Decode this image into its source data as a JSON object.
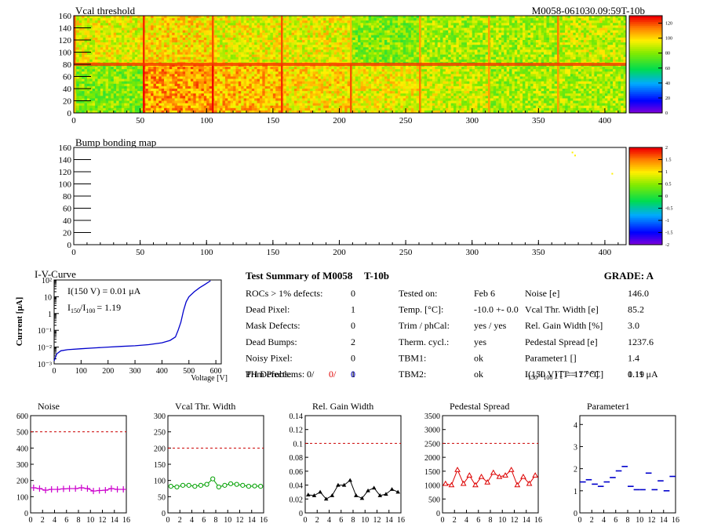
{
  "vcal_map": {
    "title": "Vcal threshold",
    "module_id": "M0058-061030.09:59T-10b",
    "x_ticks": [
      "0",
      "50",
      "100",
      "150",
      "200",
      "250",
      "300",
      "350",
      "400"
    ],
    "y_ticks": [
      "0",
      "20",
      "40",
      "60",
      "80",
      "100",
      "120",
      "140",
      "160"
    ],
    "palette_ticks": [
      "0",
      "20",
      "40",
      "60",
      "80",
      "100",
      "120"
    ],
    "xlim": [
      0,
      416
    ],
    "ylim": [
      0,
      160
    ],
    "zlim": [
      0,
      130
    ]
  },
  "bump_map": {
    "title": "Bump bonding map",
    "x_ticks": [
      "0",
      "50",
      "100",
      "150",
      "200",
      "250",
      "300",
      "350",
      "400"
    ],
    "y_ticks": [
      "0",
      "20",
      "40",
      "60",
      "80",
      "100",
      "120",
      "140",
      "160"
    ],
    "palette_ticks": [
      "-2",
      "-1.5",
      "-1",
      "-0.5",
      "0",
      "0.5",
      "1",
      "1.5",
      "2"
    ],
    "xlim": [
      0,
      416
    ],
    "ylim": [
      0,
      160
    ],
    "zlim": [
      -2,
      2
    ]
  },
  "iv": {
    "title": "I-V-Curve",
    "ylabel": "Current [μA]",
    "xlabel": "Voltage [V]",
    "x_ticks": [
      "0",
      "100",
      "200",
      "300",
      "400",
      "500",
      "600"
    ],
    "y_ticks": [
      "10⁻³",
      "10⁻²",
      "10⁻¹",
      "1",
      "10",
      "10²"
    ],
    "annotation_current": "I(150 V) = 0.01 μA",
    "annotation_ratio_label": "I",
    "annotation_ratio_sub1": "150",
    "annotation_ratio_slash": "/I",
    "annotation_ratio_sub2": "100",
    "annotation_ratio_value": "=  1.19",
    "color": "#0000cc"
  },
  "summary": {
    "title": "Test Summary of M0058",
    "subtitle": "T-10b",
    "grade": "GRADE:  A",
    "left": [
      {
        "label": "ROCs > 1% defects:",
        "value": "0"
      },
      {
        "label": "Dead Pixel:",
        "value": "1"
      },
      {
        "label": "Mask Defects:",
        "value": "0"
      },
      {
        "label": "Dead Bumps:",
        "value": "2"
      },
      {
        "label": "Noisy Pixel:",
        "value": "0"
      },
      {
        "label": "Trim Problems:",
        "value": "1"
      }
    ],
    "ph_label": "PH Defects:",
    "ph_values": [
      {
        "value": "0/",
        "color": "#000000"
      },
      {
        "value": "0/",
        "color": "#e00000"
      },
      {
        "value": "0",
        "color": "#0000cc"
      }
    ],
    "middle": [
      {
        "label": "Tested on:",
        "value": "Feb 6"
      },
      {
        "label": "Temp. [°C]:",
        "value": "-10.0 +- 0.0"
      },
      {
        "label": "Trim / phCal:",
        "value": "yes / yes"
      },
      {
        "label": "Therm. cycl.:",
        "value": "yes"
      },
      {
        "label": "TBM1:",
        "value": "ok"
      },
      {
        "label": "TBM2:",
        "value": "ok"
      }
    ],
    "right": [
      {
        "label": "Noise [e]",
        "value": "146.0"
      },
      {
        "label": "Vcal Thr. Width [e]",
        "value": "85.2"
      },
      {
        "label": "Rel. Gain Width [%]",
        "value": "3.0"
      },
      {
        "label": "Pedestal Spread [e]",
        "value": "1237.6"
      },
      {
        "label": "Parameter1 []",
        "value": "1.4"
      },
      {
        "label": "I(150 V) [T = 17 °C]",
        "value": "0.11 μA"
      }
    ],
    "ratio_row": {
      "label_main": "I",
      "sub1": "150",
      "slash": "/I",
      "sub2": "100",
      "tail": " [T = 17 °C]",
      "value": "1.19"
    }
  },
  "chart_data": [
    {
      "type": "heatmap",
      "title": "Vcal threshold",
      "x_range": [
        0,
        416
      ],
      "y_range": [
        0,
        160
      ],
      "z_range": [
        0,
        130
      ],
      "roc_grid": {
        "columns": 8,
        "rows": 2
      },
      "roc_mean_values_top_row": [
        95,
        100,
        95,
        95,
        80,
        85,
        85,
        90
      ],
      "roc_mean_values_bottom_row": [
        80,
        110,
        105,
        100,
        95,
        90,
        85,
        85
      ]
    },
    {
      "type": "heatmap",
      "title": "Bump bonding map",
      "x_range": [
        0,
        416
      ],
      "y_range": [
        0,
        160
      ],
      "z_range": [
        -2,
        2
      ],
      "points": [
        {
          "x": 375,
          "y": 153,
          "z": 1
        },
        {
          "x": 377,
          "y": 148,
          "z": 1
        },
        {
          "x": 405,
          "y": 118,
          "z": 1
        }
      ]
    },
    {
      "type": "line",
      "title": "I-V-Curve",
      "xlabel": "Voltage [V]",
      "ylabel": "Current [μA]",
      "yscale": "log",
      "xlim": [
        0,
        620
      ],
      "ylim": [
        0.001,
        100
      ],
      "x": [
        0,
        10,
        25,
        50,
        100,
        150,
        200,
        250,
        300,
        350,
        400,
        430,
        450,
        460,
        470,
        480,
        490,
        500,
        520,
        540,
        560,
        580
      ],
      "y": [
        0.0015,
        0.004,
        0.006,
        0.007,
        0.008,
        0.009,
        0.01,
        0.011,
        0.012,
        0.014,
        0.018,
        0.025,
        0.04,
        0.1,
        0.3,
        1.5,
        5,
        10,
        20,
        35,
        55,
        90
      ]
    },
    {
      "type": "line",
      "title": "Noise",
      "color": "#cc00cc",
      "marker": "errorbar",
      "xlim": [
        0,
        16
      ],
      "ylim": [
        0,
        600
      ],
      "x_ticks": [
        "0",
        "2",
        "4",
        "6",
        "8",
        "10",
        "12",
        "14",
        "16"
      ],
      "y_ticks": [
        "0",
        "100",
        "200",
        "300",
        "400",
        "500",
        "600"
      ],
      "x": [
        0,
        1,
        2,
        3,
        4,
        5,
        6,
        7,
        8,
        9,
        10,
        11,
        12,
        13,
        14,
        15
      ],
      "values": [
        155,
        150,
        140,
        145,
        145,
        148,
        150,
        150,
        155,
        150,
        135,
        138,
        140,
        150,
        145,
        145
      ],
      "threshold": 500
    },
    {
      "type": "line",
      "title": "Vcal Thr. Width",
      "color": "#00a000",
      "marker": "circle",
      "xlim": [
        0,
        16
      ],
      "ylim": [
        0,
        300
      ],
      "x_ticks": [
        "0",
        "2",
        "4",
        "6",
        "8",
        "10",
        "12",
        "14",
        "16"
      ],
      "y_ticks": [
        "0",
        "50",
        "100",
        "150",
        "200",
        "250",
        "300"
      ],
      "x": [
        0,
        1,
        2,
        3,
        4,
        5,
        6,
        7,
        8,
        9,
        10,
        11,
        12,
        13,
        14,
        15
      ],
      "values": [
        82,
        80,
        85,
        85,
        82,
        85,
        88,
        105,
        80,
        85,
        90,
        88,
        85,
        82,
        83,
        82
      ],
      "threshold": 200
    },
    {
      "type": "line",
      "title": "Rel. Gain Width",
      "color": "#000000",
      "marker": "triangle",
      "xlim": [
        0,
        16
      ],
      "ylim": [
        0,
        0.14
      ],
      "x_ticks": [
        "0",
        "2",
        "4",
        "6",
        "8",
        "10",
        "12",
        "14",
        "16"
      ],
      "y_ticks": [
        "0",
        "0.02",
        "0.04",
        "0.06",
        "0.08",
        "0.1",
        "0.12",
        "0.14"
      ],
      "x": [
        0,
        1,
        2,
        3,
        4,
        5,
        6,
        7,
        8,
        9,
        10,
        11,
        12,
        13,
        14,
        15
      ],
      "values": [
        0.026,
        0.025,
        0.03,
        0.02,
        0.025,
        0.04,
        0.04,
        0.047,
        0.025,
        0.021,
        0.032,
        0.036,
        0.025,
        0.027,
        0.034,
        0.03
      ],
      "threshold": 0.1
    },
    {
      "type": "line",
      "title": "Pedestal Spread",
      "color": "#dd0000",
      "marker": "triangle-open",
      "xlim": [
        0,
        16
      ],
      "ylim": [
        0,
        3500
      ],
      "x_ticks": [
        "0",
        "2",
        "4",
        "6",
        "8",
        "10",
        "12",
        "14",
        "16"
      ],
      "y_ticks": [
        "0",
        "500",
        "1000",
        "1500",
        "2000",
        "2500",
        "3000",
        "3500"
      ],
      "x": [
        0,
        1,
        2,
        3,
        4,
        5,
        6,
        7,
        8,
        9,
        10,
        11,
        12,
        13,
        14,
        15
      ],
      "values": [
        1050,
        1000,
        1550,
        1050,
        1350,
        1000,
        1300,
        1100,
        1450,
        1300,
        1350,
        1550,
        1000,
        1300,
        1050,
        1350
      ],
      "threshold": 2500
    },
    {
      "type": "scatter",
      "title": "Parameter1",
      "color": "#0000cc",
      "marker": "hbar",
      "xlim": [
        0,
        16
      ],
      "ylim": [
        0,
        4.4
      ],
      "x_ticks": [
        "0",
        "2",
        "4",
        "6",
        "8",
        "10",
        "12",
        "14",
        "16"
      ],
      "y_ticks": [
        "0",
        "1",
        "2",
        "3",
        "4"
      ],
      "x": [
        0,
        1,
        2,
        3,
        4,
        5,
        6,
        7,
        8,
        9,
        10,
        11,
        12,
        13,
        14,
        15
      ],
      "values": [
        1.4,
        1.5,
        1.3,
        1.2,
        1.4,
        1.6,
        1.9,
        2.1,
        1.2,
        1.05,
        1.05,
        1.8,
        1.05,
        1.45,
        1.0,
        1.65
      ]
    }
  ]
}
